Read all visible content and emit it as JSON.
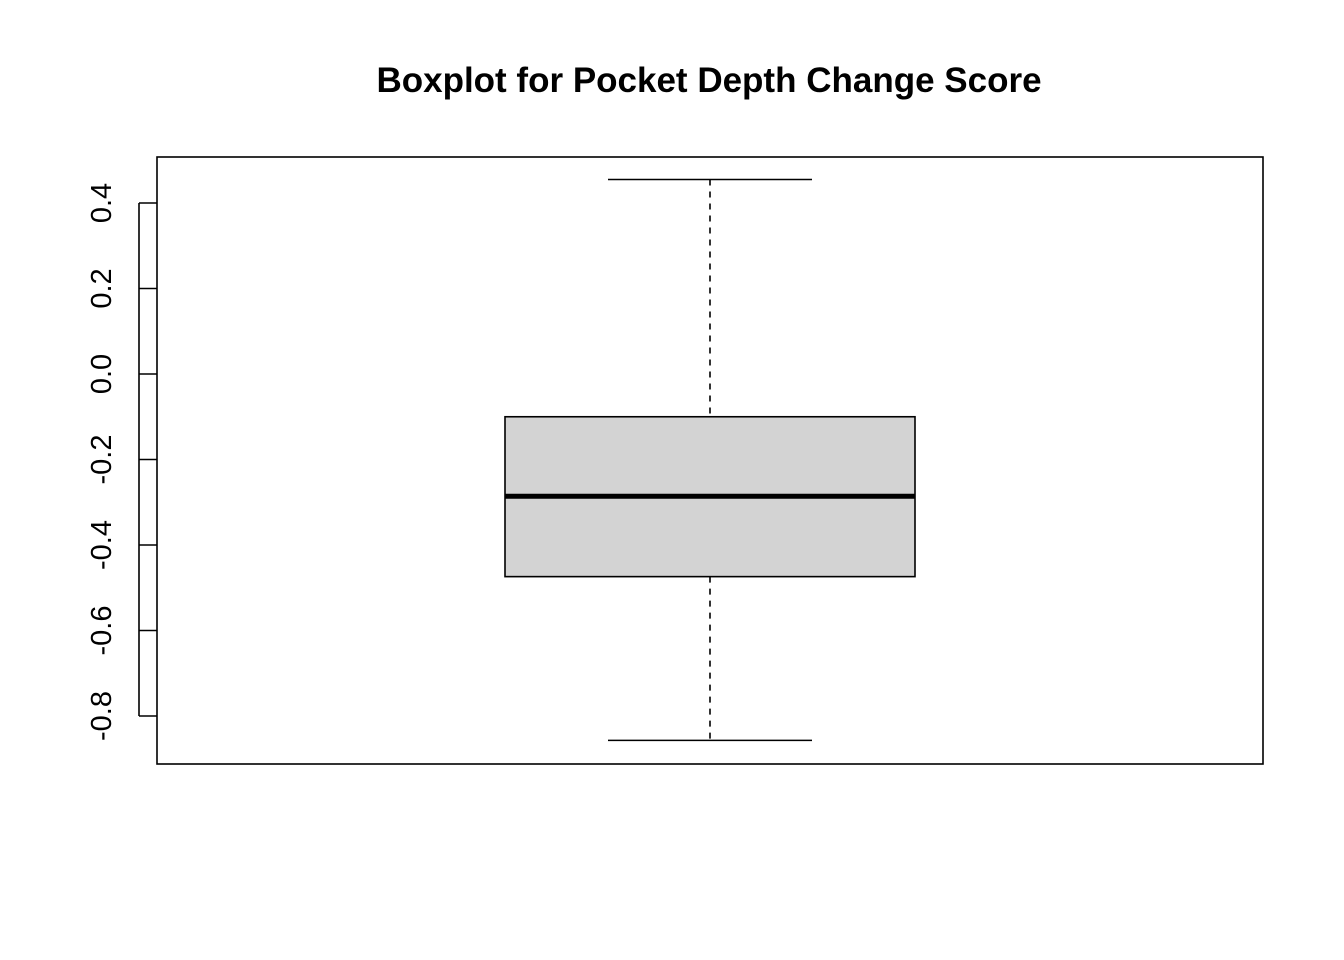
{
  "chart_data": {
    "type": "boxplot",
    "title": "Boxplot for Pocket Depth Change Score",
    "xlabel": "",
    "ylabel": "",
    "ylim": [
      -0.9,
      0.5
    ],
    "y_ticks": [
      -0.8,
      -0.6,
      -0.4,
      -0.2,
      0.0,
      0.2,
      0.4
    ],
    "y_tick_labels": [
      "-0.8",
      "-0.6",
      "-0.4",
      "-0.2",
      "0.0",
      "0.2",
      "0.4"
    ],
    "grid": false,
    "series": [
      {
        "whisker_low": -0.857,
        "q1": -0.474,
        "median": -0.286,
        "q3": -0.1,
        "whisker_high": 0.455
      }
    ],
    "colors": {
      "box_fill": "#d3d3d3",
      "stroke": "#000000"
    }
  }
}
